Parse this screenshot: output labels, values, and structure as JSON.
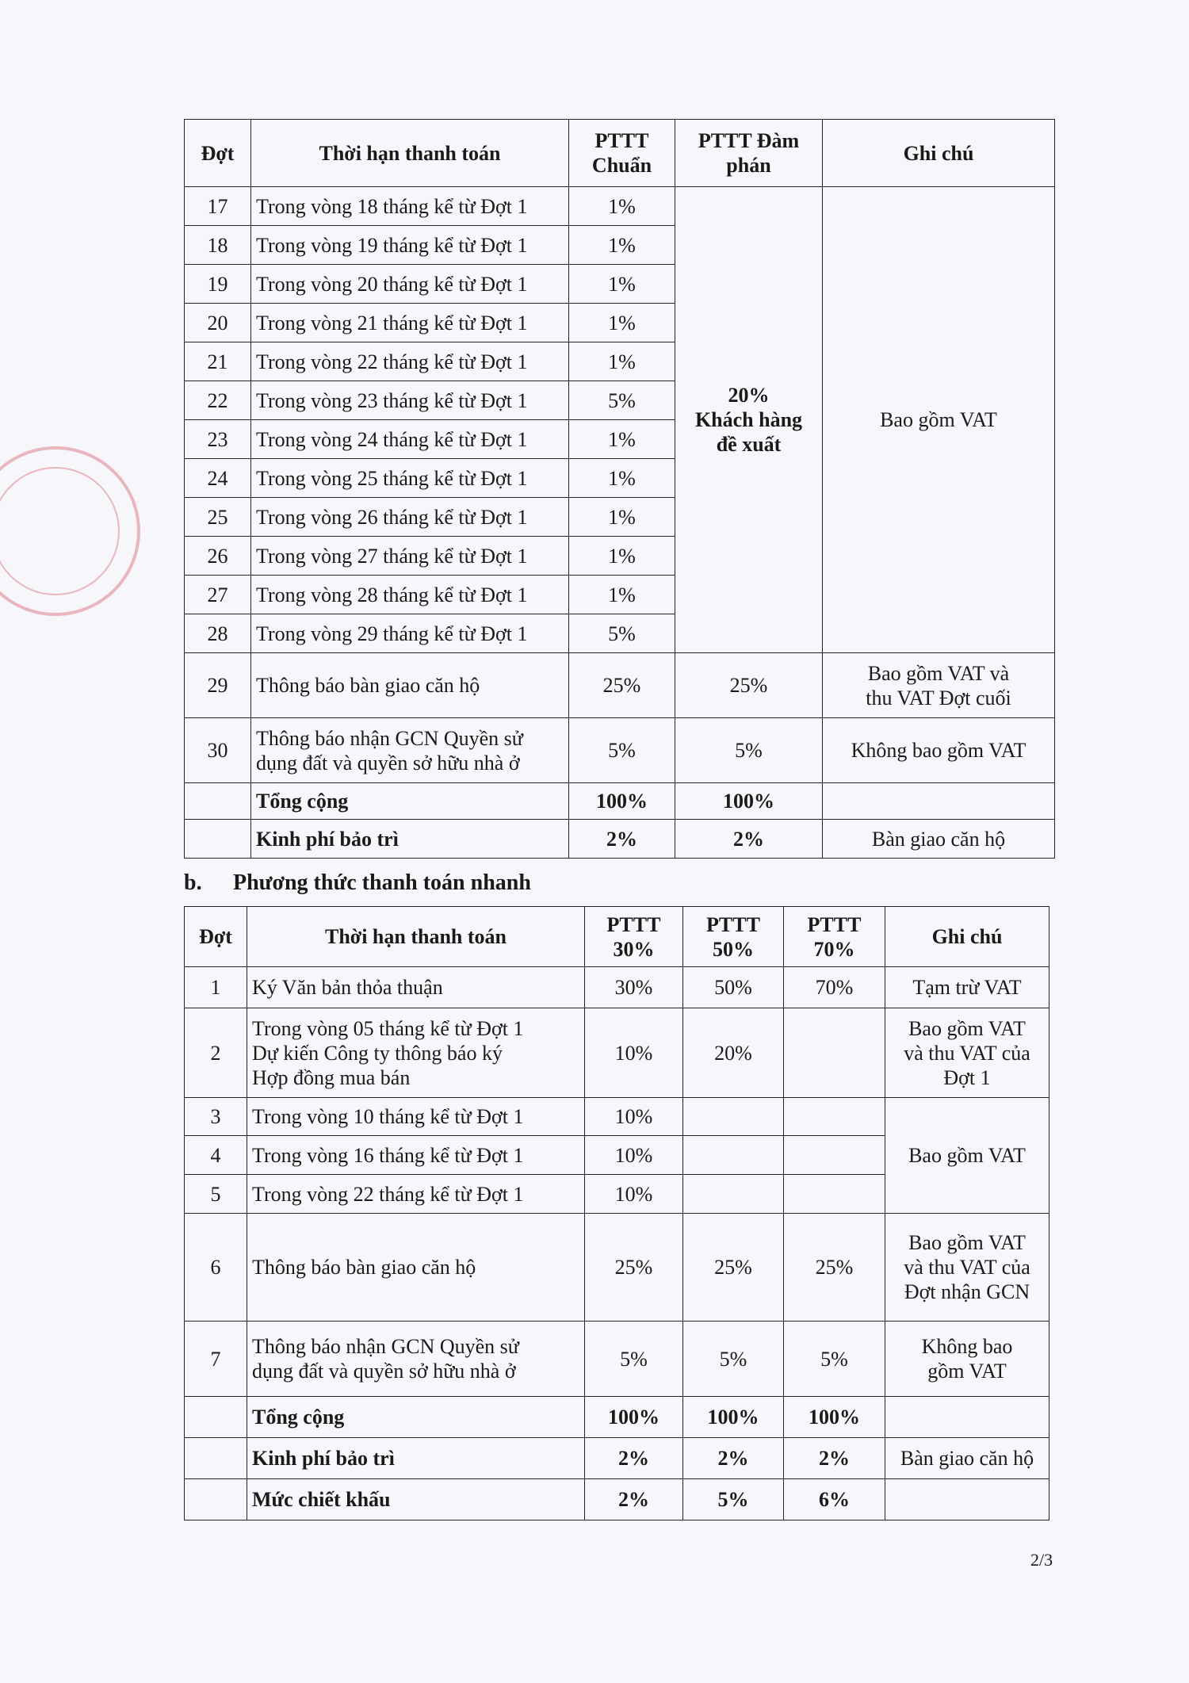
{
  "table_a": {
    "headers": [
      "Đợt",
      "Thời hạn thanh toán",
      "PTTT Chuẩn",
      "PTTT Đàm phán",
      "Ghi chú"
    ],
    "rows": [
      {
        "dot": "17",
        "term": "Trong vòng 18 tháng kể từ Đợt 1",
        "std": "1%"
      },
      {
        "dot": "18",
        "term": "Trong vòng 19 tháng kể từ Đợt 1",
        "std": "1%"
      },
      {
        "dot": "19",
        "term": "Trong vòng 20 tháng kể từ Đợt 1",
        "std": "1%"
      },
      {
        "dot": "20",
        "term": "Trong vòng 21 tháng kể từ Đợt 1",
        "std": "1%"
      },
      {
        "dot": "21",
        "term": "Trong vòng 22 tháng kể từ Đợt 1",
        "std": "1%"
      },
      {
        "dot": "22",
        "term": "Trong vòng 23 tháng kể từ Đợt 1",
        "std": "5%"
      },
      {
        "dot": "23",
        "term": "Trong vòng 24 tháng kể từ Đợt 1",
        "std": "1%"
      },
      {
        "dot": "24",
        "term": "Trong vòng 25 tháng kể từ Đợt 1",
        "std": "1%"
      },
      {
        "dot": "25",
        "term": "Trong vòng 26 tháng kể từ Đợt 1",
        "std": "1%"
      },
      {
        "dot": "26",
        "term": "Trong vòng 27 tháng kể từ Đợt 1",
        "std": "1%"
      },
      {
        "dot": "27",
        "term": "Trong vòng 28 tháng kể từ Đợt 1",
        "std": "1%"
      },
      {
        "dot": "28",
        "term": "Trong vòng 29 tháng kể từ Đợt 1",
        "std": "5%"
      }
    ],
    "merged_negotiated": [
      "20%",
      "Khách hàng",
      "đề xuất"
    ],
    "merged_note": "Bao gồm VAT",
    "row29": {
      "dot": "29",
      "term": "Thông báo bàn giao căn hộ",
      "std": "25%",
      "neg": "25%",
      "note": [
        "Bao gồm VAT và",
        "thu VAT Đợt cuối"
      ]
    },
    "row30": {
      "dot": "30",
      "term": [
        "Thông báo nhận GCN Quyền sử",
        "dụng đất và quyền sở hữu nhà ở"
      ],
      "std": "5%",
      "neg": "5%",
      "note": "Không bao gồm VAT"
    },
    "total": {
      "label": "Tổng cộng",
      "std": "100%",
      "neg": "100%"
    },
    "maintenance": {
      "label": "Kinh phí bảo trì",
      "std": "2%",
      "neg": "2%",
      "note": "Bàn giao căn hộ"
    }
  },
  "section_b": {
    "marker": "b.",
    "title": "Phương thức thanh toán nhanh"
  },
  "table_b": {
    "headers": [
      "Đợt",
      "Thời hạn thanh toán",
      [
        "PTTT",
        "30%"
      ],
      [
        "PTTT",
        "50%"
      ],
      [
        "PTTT",
        "70%"
      ],
      "Ghi chú"
    ],
    "row1": {
      "dot": "1",
      "term": "Ký Văn bản thỏa thuận",
      "p30": "30%",
      "p50": "50%",
      "p70": "70%",
      "note": "Tạm trừ VAT"
    },
    "row2": {
      "dot": "2",
      "term": [
        "Trong vòng 05 tháng kể từ Đợt 1",
        "Dự kiến Công ty thông báo ký",
        "Hợp đồng mua bán"
      ],
      "p30": "10%",
      "p50": "20%",
      "note": [
        "Bao gồm VAT",
        "và thu VAT của",
        "Đợt 1"
      ]
    },
    "row3": {
      "dot": "3",
      "term": "Trong vòng 10 tháng kể từ Đợt 1",
      "p30": "10%"
    },
    "row4": {
      "dot": "4",
      "term": "Trong vòng 16 tháng kể từ Đợt 1",
      "p30": "10%"
    },
    "row5": {
      "dot": "5",
      "term": "Trong vòng 22 tháng kể từ Đợt 1",
      "p30": "10%"
    },
    "merged_note_345": "Bao gồm VAT",
    "row6": {
      "dot": "6",
      "term": "Thông báo bàn giao căn hộ",
      "p30": "25%",
      "p50": "25%",
      "p70": "25%",
      "note": [
        "Bao gồm VAT",
        "và thu VAT của",
        "Đợt nhận GCN"
      ]
    },
    "row7": {
      "dot": "7",
      "term": [
        "Thông báo nhận GCN Quyền sử",
        "dụng đất và quyền sở hữu nhà ở"
      ],
      "p30": "5%",
      "p50": "5%",
      "p70": "5%",
      "note": [
        "Không bao",
        "gồm VAT"
      ]
    },
    "total": {
      "label": "Tổng cộng",
      "p30": "100%",
      "p50": "100%",
      "p70": "100%"
    },
    "maintenance": {
      "label": "Kinh phí bảo trì",
      "p30": "2%",
      "p50": "2%",
      "p70": "2%",
      "note": "Bàn giao căn hộ"
    },
    "discount": {
      "label": "Mức chiết khấu",
      "p30": "2%",
      "p50": "5%",
      "p70": "6%"
    }
  },
  "page_number": "2/3",
  "stamp_color": "#d04050"
}
